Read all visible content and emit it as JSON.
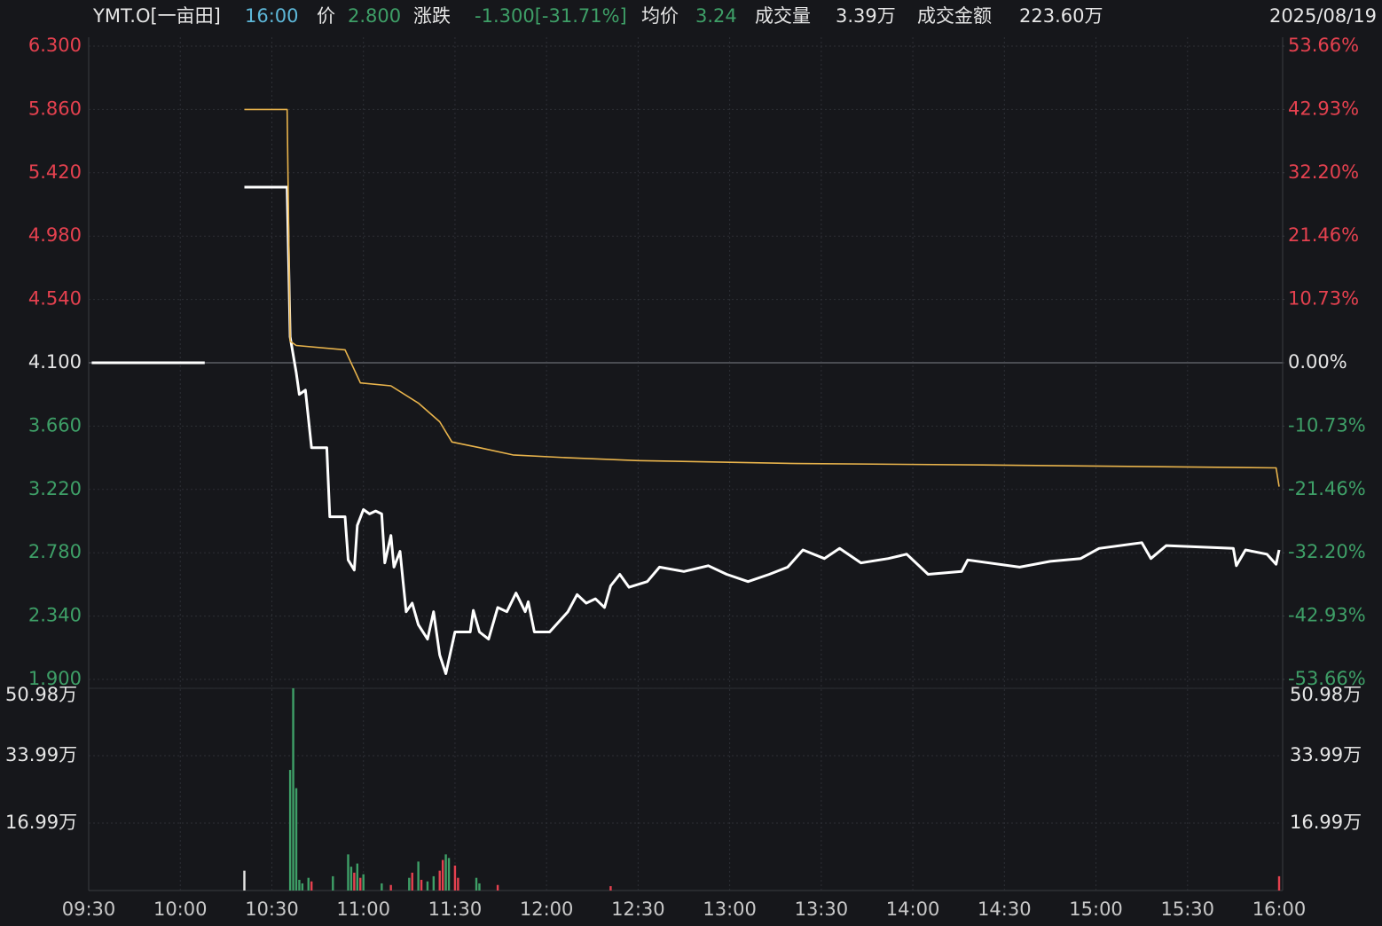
{
  "chart_data": {
    "type": "line",
    "header": [
      {
        "text": "YMT.O[一亩田]",
        "color": "#e6e6e6"
      },
      {
        "text": "16:00",
        "color": "#5db7d8"
      },
      {
        "text": "价",
        "color": "#e6e6e6"
      },
      {
        "text": "2.800",
        "color": "#3e9f67"
      },
      {
        "text": "涨跌",
        "color": "#e6e6e6"
      },
      {
        "text": "-1.300[-31.71%]",
        "color": "#3e9f67"
      },
      {
        "text": "均价",
        "color": "#e6e6e6"
      },
      {
        "text": "3.24",
        "color": "#3e9f67"
      },
      {
        "text": "成交量",
        "color": "#e6e6e6"
      },
      {
        "text": "3.39万",
        "color": "#e6e6e6"
      },
      {
        "text": "成交金额",
        "color": "#e6e6e6"
      },
      {
        "text": "223.60万",
        "color": "#e6e6e6"
      }
    ],
    "date": "2025/08/19",
    "up_color": "#e5414f",
    "down_color": "#3e9f67",
    "flat_color": "#e6e6e6",
    "baseline": 4.1,
    "xlim": [
      "09:30",
      "16:00"
    ],
    "xticks": [
      "09:30",
      "10:00",
      "10:30",
      "11:00",
      "11:30",
      "12:00",
      "12:30",
      "13:00",
      "13:30",
      "14:00",
      "14:30",
      "15:00",
      "15:30",
      "16:00"
    ],
    "ylim": [
      1.9,
      6.3
    ],
    "yticks": [
      {
        "value": 1.9,
        "label": "1.900"
      },
      {
        "value": 2.34,
        "label": "2.340"
      },
      {
        "value": 2.78,
        "label": "2.780"
      },
      {
        "value": 3.22,
        "label": "3.220"
      },
      {
        "value": 3.66,
        "label": "3.660"
      },
      {
        "value": 4.1,
        "label": "4.100"
      },
      {
        "value": 4.54,
        "label": "4.540"
      },
      {
        "value": 4.98,
        "label": "4.980"
      },
      {
        "value": 5.42,
        "label": "5.420"
      },
      {
        "value": 5.86,
        "label": "5.860"
      },
      {
        "value": 6.3,
        "label": "6.300"
      }
    ],
    "y2lim": [
      -53.66,
      53.66
    ],
    "y2ticks": [
      {
        "value": -53.66,
        "label": "-53.66%"
      },
      {
        "value": -42.93,
        "label": "-42.93%"
      },
      {
        "value": -32.2,
        "label": "-32.20%"
      },
      {
        "value": -21.46,
        "label": "-21.46%"
      },
      {
        "value": -10.73,
        "label": "-10.73%"
      },
      {
        "value": 0,
        "label": "0.00%"
      },
      {
        "value": 10.73,
        "label": "10.73%"
      },
      {
        "value": 21.46,
        "label": "21.46%"
      },
      {
        "value": 32.2,
        "label": "32.20%"
      },
      {
        "value": 42.93,
        "label": "42.93%"
      },
      {
        "value": 53.66,
        "label": "53.66%"
      }
    ],
    "series": [
      {
        "color": "#ffffff",
        "x": [
          "09:31",
          "10:08",
          "10:15",
          "10:21",
          "10:35",
          "10:36",
          "10:38",
          "10:39",
          "10:41",
          "10:43",
          "10:48",
          "10:49",
          "10:54",
          "10:55",
          "10:57",
          "10:58",
          "11:00",
          "11:02",
          "11:04",
          "11:06",
          "11:07",
          "11:09",
          "11:10",
          "11:12",
          "11:13",
          "11:14",
          "11:16",
          "11:18",
          "11:21",
          "11:23",
          "11:25",
          "11:27",
          "11:30",
          "11:35",
          "11:36",
          "11:38",
          "11:41",
          "11:44",
          "11:47",
          "11:50",
          "11:53",
          "11:54",
          "11:56",
          "12:01",
          "12:07",
          "12:10",
          "12:13",
          "12:16",
          "12:19",
          "12:21",
          "12:24",
          "12:27",
          "12:33",
          "12:37",
          "12:45",
          "12:53",
          "12:59",
          "13:06",
          "13:13",
          "13:19",
          "13:24",
          "13:31",
          "13:36",
          "13:43",
          "13:52",
          "13:58",
          "14:05",
          "14:16",
          "14:18",
          "14:35",
          "14:45",
          "14:55",
          "15:01",
          "15:15",
          "15:18",
          "15:23",
          "15:45",
          "15:46",
          "15:49",
          "15:56",
          "15:59",
          "16:00"
        ],
        "values": [
          4.1,
          4.1,
          null,
          5.32,
          5.32,
          4.28,
          4.03,
          3.88,
          3.91,
          3.51,
          3.51,
          3.03,
          3.03,
          2.73,
          2.66,
          2.97,
          3.08,
          3.05,
          3.07,
          3.05,
          2.71,
          2.9,
          2.68,
          2.79,
          2.58,
          2.37,
          2.43,
          2.28,
          2.18,
          2.37,
          2.07,
          1.94,
          2.23,
          2.23,
          2.38,
          2.23,
          2.18,
          2.4,
          2.37,
          2.5,
          2.37,
          2.44,
          2.23,
          2.23,
          2.37,
          2.49,
          2.43,
          2.46,
          2.4,
          2.55,
          2.63,
          2.54,
          2.58,
          2.68,
          2.65,
          2.69,
          2.63,
          2.58,
          2.63,
          2.68,
          2.8,
          2.74,
          2.81,
          2.71,
          2.74,
          2.77,
          2.63,
          2.65,
          2.73,
          2.68,
          2.72,
          2.74,
          2.81,
          2.85,
          2.74,
          2.83,
          2.81,
          2.69,
          2.8,
          2.77,
          2.7,
          2.8
        ]
      },
      {
        "color": "#e9b44c",
        "x": [
          "10:21",
          "10:35",
          "10:36",
          "10:38",
          "10:54",
          "10:59",
          "11:09",
          "11:18",
          "11:25",
          "11:29",
          "11:38",
          "11:49",
          "12:07",
          "12:30",
          "13:22",
          "14:23",
          "15:59",
          "16:00"
        ],
        "values": [
          5.86,
          5.86,
          4.25,
          4.22,
          4.19,
          3.96,
          3.94,
          3.82,
          3.69,
          3.55,
          3.51,
          3.46,
          3.44,
          3.42,
          3.4,
          3.39,
          3.37,
          3.24
        ]
      }
    ],
    "volume": {
      "type": "bar",
      "ylim": [
        0,
        50.98
      ],
      "yticks": [
        {
          "value": 16.99,
          "label": "16.99万"
        },
        {
          "value": 33.99,
          "label": "33.99万"
        },
        {
          "value": 50.98,
          "label": "50.98万"
        }
      ],
      "x": [
        "10:21",
        "10:36",
        "10:37",
        "10:38",
        "10:39",
        "10:40",
        "10:42",
        "10:43",
        "10:50",
        "10:55",
        "10:56",
        "10:57",
        "10:58",
        "10:59",
        "11:00",
        "11:06",
        "11:09",
        "11:15",
        "11:16",
        "11:18",
        "11:19",
        "11:21",
        "11:23",
        "11:25",
        "11:26",
        "11:27",
        "11:28",
        "11:30",
        "11:31",
        "11:37",
        "11:38",
        "11:44",
        "12:21",
        "16:00"
      ],
      "values": [
        5.0,
        30.4,
        51.0,
        25.8,
        2.7,
        1.8,
        3.2,
        2.3,
        3.6,
        9.1,
        6.0,
        4.5,
        6.8,
        3.2,
        4.1,
        1.8,
        1.4,
        3.2,
        4.5,
        7.3,
        2.7,
        2.3,
        3.6,
        5.0,
        7.7,
        9.1,
        8.2,
        6.3,
        3.2,
        3.2,
        1.8,
        1.4,
        1.1,
        3.6
      ],
      "colors": [
        "#e6e6e6",
        "#3e9f67",
        "#3e9f67",
        "#3e9f67",
        "#3e9f67",
        "#3e9f67",
        "#3e9f67",
        "#e5414f",
        "#3e9f67",
        "#3e9f67",
        "#3e9f67",
        "#e5414f",
        "#3e9f67",
        "#e5414f",
        "#3e9f67",
        "#3e9f67",
        "#e5414f",
        "#3e9f67",
        "#e5414f",
        "#3e9f67",
        "#e5414f",
        "#3e9f67",
        "#3e9f67",
        "#e5414f",
        "#e5414f",
        "#3e9f67",
        "#3e9f67",
        "#e5414f",
        "#e5414f",
        "#3e9f67",
        "#3e9f67",
        "#e5414f",
        "#e5414f",
        "#e5414f"
      ]
    },
    "grid": true
  }
}
